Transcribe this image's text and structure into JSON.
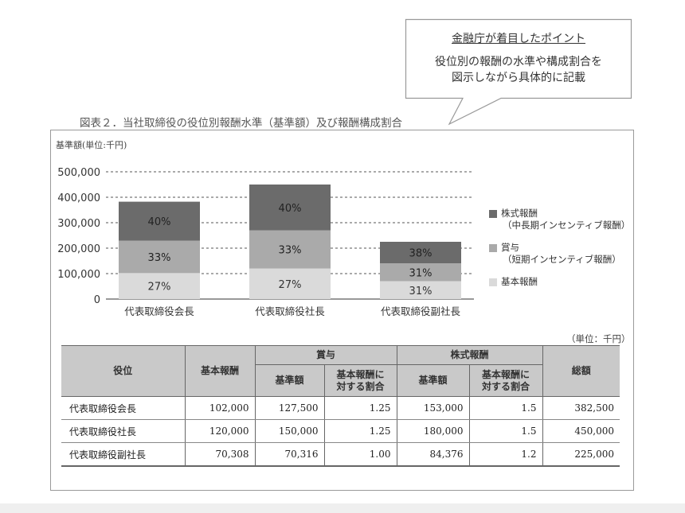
{
  "callout": {
    "title": "金融庁が着目したポイント",
    "line1": "役位別の報酬の水準や構成割合を",
    "line2": "図示しながら具体的に記載"
  },
  "figure_title": "図表２．当社取締役の役位別報酬水準（基準額）及び報酬構成割合",
  "chart_data": {
    "type": "bar",
    "stacked": true,
    "unit_label": "基準額(単位:千円)",
    "categories": [
      "代表取締役会長",
      "代表取締役社長",
      "代表取締役副社長"
    ],
    "ylim": [
      0,
      500000
    ],
    "yticks": [
      "500,000",
      "400,000",
      "300,000",
      "200,000",
      "100,000",
      "0"
    ],
    "ytick_values": [
      500000,
      400000,
      300000,
      200000,
      100000,
      0
    ],
    "grid": "dashed",
    "legend_position": "right",
    "series": [
      {
        "name": "基本報酬",
        "values": [
          102000,
          120000,
          70308
        ],
        "labels": [
          "27%",
          "27%",
          "31%"
        ],
        "color": "#dadada",
        "label_color": "#333333"
      },
      {
        "name": "賞与",
        "sub": "（短期インセンティブ報酬）",
        "values": [
          127500,
          150000,
          70316
        ],
        "labels": [
          "33%",
          "33%",
          "31%"
        ],
        "color": "#aaaaaa",
        "label_color": "#222222"
      },
      {
        "name": "株式報酬",
        "sub": "（中長期インセンティブ報酬）",
        "values": [
          153000,
          180000,
          84376
        ],
        "labels": [
          "40%",
          "40%",
          "38%"
        ],
        "color": "#6b6b6b",
        "label_color": "#222222"
      }
    ]
  },
  "table": {
    "unit": "（単位：千円）",
    "headers": {
      "role": "役位",
      "base": "基本報酬",
      "bonus": "賞与",
      "stock": "株式報酬",
      "total": "総額",
      "std_amount": "基準額",
      "ratio_line1": "基本報酬に",
      "ratio_line2": "対する割合"
    },
    "rows": [
      {
        "role": "代表取締役会長",
        "base": "102,000",
        "bonus_amount": "127,500",
        "bonus_ratio": "1.25",
        "stock_amount": "153,000",
        "stock_ratio": "1.5",
        "total": "382,500"
      },
      {
        "role": "代表取締役社長",
        "base": "120,000",
        "bonus_amount": "150,000",
        "bonus_ratio": "1.25",
        "stock_amount": "180,000",
        "stock_ratio": "1.5",
        "total": "450,000"
      },
      {
        "role": "代表取締役副社長",
        "base": "70,308",
        "bonus_amount": "70,316",
        "bonus_ratio": "1.00",
        "stock_amount": "84,376",
        "stock_ratio": "1.2",
        "total": "225,000"
      }
    ]
  }
}
